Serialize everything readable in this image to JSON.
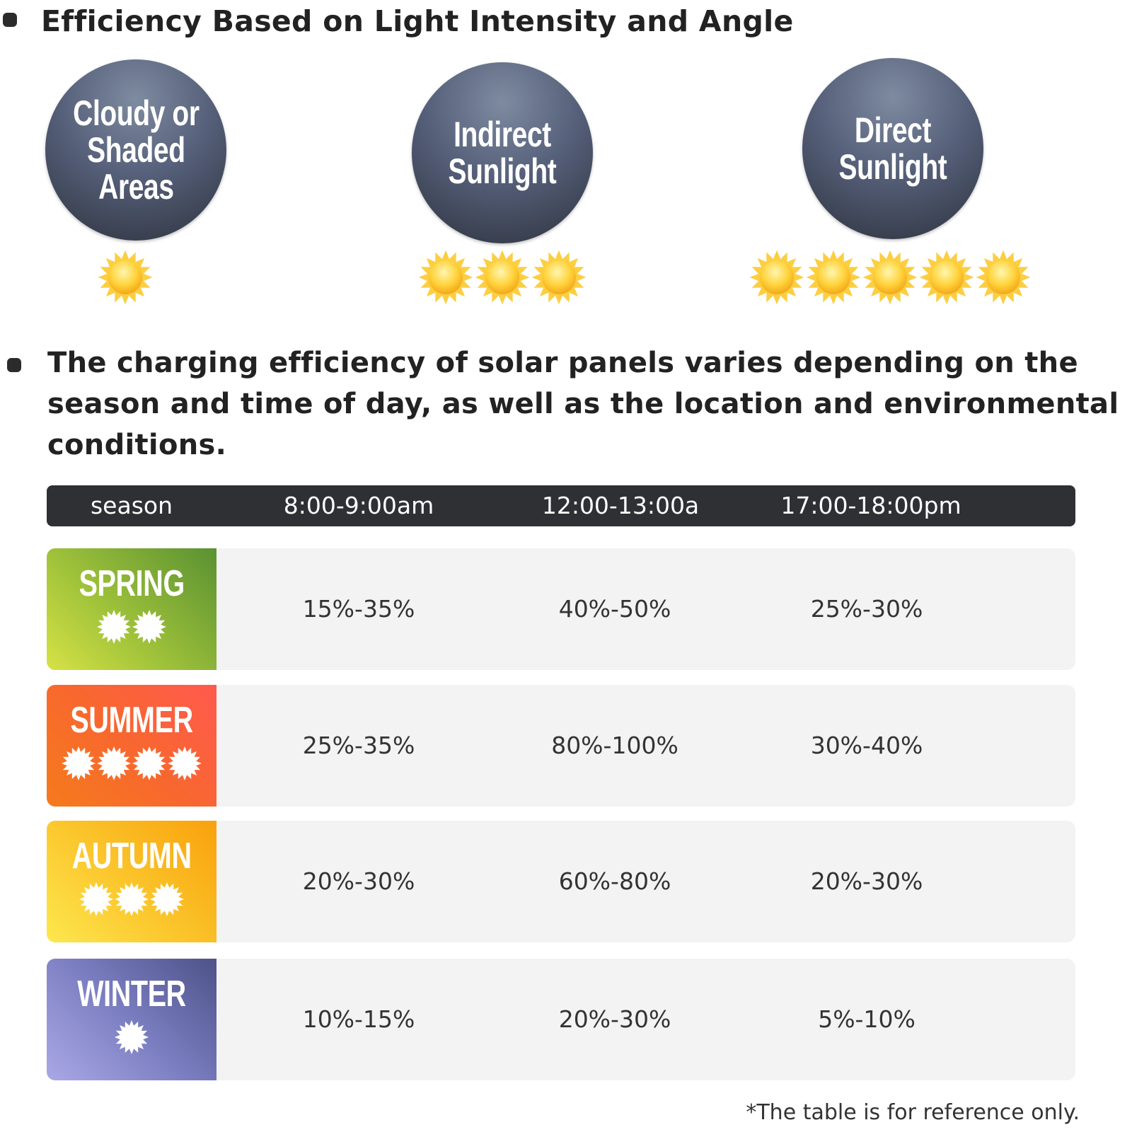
{
  "section1": {
    "heading": "Efficiency Based on Light Intensity and Angle",
    "levels": [
      {
        "label": "Cloudy or\nShaded\nAreas",
        "suns": 1
      },
      {
        "label": "Indirect\nSunlight",
        "suns": 3
      },
      {
        "label": "Direct\nSunlight",
        "suns": 5
      }
    ]
  },
  "section2": {
    "heading": "The charging efficiency of solar panels varies depending on the season and time of day, as well as the location and environmental conditions."
  },
  "table": {
    "headers": [
      "season",
      "8:00-9:00am",
      "12:00-13:00a",
      "17:00-18:00pm"
    ],
    "rows": [
      {
        "season": "SPRING",
        "suns": 2,
        "values": [
          "15%-35%",
          "40%-50%",
          "25%-30%"
        ]
      },
      {
        "season": "SUMMER",
        "suns": 4,
        "values": [
          "25%-35%",
          "80%-100%",
          "30%-40%"
        ]
      },
      {
        "season": "AUTUMN",
        "suns": 3,
        "values": [
          "20%-30%",
          "60%-80%",
          "20%-30%"
        ]
      },
      {
        "season": "WINTER",
        "suns": 1,
        "values": [
          "10%-15%",
          "20%-30%",
          "5%-10%"
        ]
      }
    ]
  },
  "footnote": "*The table is for reference only.",
  "colors": {
    "spring": "#8fbf3c",
    "summer": "#f86a2c",
    "autumn": "#fbc22a",
    "winter": "#6f72b4",
    "sun": "#fcc521",
    "header_bar": "#2f3033"
  }
}
